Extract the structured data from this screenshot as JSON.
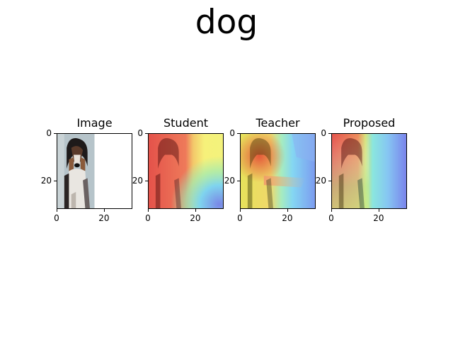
{
  "figure": {
    "title": "dog"
  },
  "panels": [
    {
      "title": "Image",
      "style": "image"
    },
    {
      "title": "Student",
      "style": "student"
    },
    {
      "title": "Teacher",
      "style": "teacher"
    },
    {
      "title": "Proposed",
      "style": "proposed"
    }
  ],
  "axis": {
    "x_ticks": [
      "0",
      "20"
    ],
    "y_ticks": [
      "0",
      "20"
    ],
    "x_tick_values": [
      0,
      20
    ],
    "y_tick_values": [
      0,
      20
    ],
    "extent": [
      0,
      32
    ]
  },
  "colors": {
    "photo_bg": "#b9c7cc",
    "jet_red": "#e83a2a",
    "jet_yellow": "#f4ef6a",
    "jet_cyan": "#7fe7f0",
    "jet_blue": "#6c7ef0"
  }
}
